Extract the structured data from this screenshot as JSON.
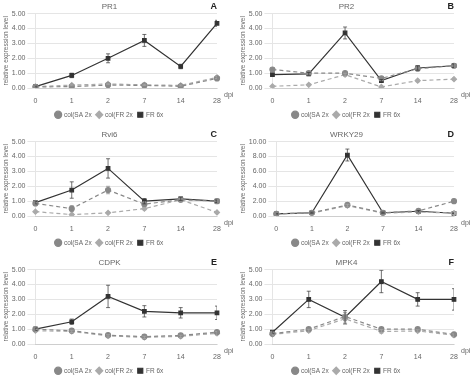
{
  "chart_data": [
    {
      "type": "line",
      "title": "PR1",
      "annotation": "A",
      "xlabel": "dpi",
      "ylabel": "relative expression level",
      "categories": [
        "0",
        "1",
        "2",
        "7",
        "14",
        "28"
      ],
      "ylim": [
        0,
        5.0
      ],
      "yticks": [
        {
          "value": 0,
          "label": "0.00"
        },
        {
          "value": 1,
          "label": "1.00"
        },
        {
          "value": 2,
          "label": "2.00"
        },
        {
          "value": 3,
          "label": "3.00"
        },
        {
          "value": 4,
          "label": "4.00"
        },
        {
          "value": 5,
          "label": "5.00"
        }
      ],
      "grid": "y",
      "legend": "bottom",
      "series": [
        {
          "name": "col(SA 2x",
          "color": "#888888",
          "line_style": "dashed",
          "marker": "circle",
          "values": [
            0.08,
            0.1,
            0.2,
            0.18,
            0.12,
            0.65
          ],
          "errors": [
            0.03,
            0.05,
            0.05,
            0.04,
            0.04,
            0.08
          ]
        },
        {
          "name": "col(FR 2x",
          "color": "#aaaaaa",
          "line_style": "dashed",
          "marker": "diamond",
          "values": [
            0.1,
            0.2,
            0.28,
            0.22,
            0.18,
            0.72
          ],
          "errors": [
            0.03,
            0.04,
            0.05,
            0.04,
            0.04,
            0.08
          ]
        },
        {
          "name": "FR 6x",
          "color": "#333333",
          "line_style": "solid",
          "marker": "square",
          "values": [
            0.1,
            0.85,
            2.0,
            3.2,
            1.45,
            4.35
          ],
          "errors": [
            0.03,
            0.15,
            0.3,
            0.4,
            0.15,
            0.2
          ]
        }
      ]
    },
    {
      "type": "line",
      "title": "PR2",
      "annotation": "B",
      "xlabel": "dpi",
      "ylabel": "relative expression level",
      "categories": [
        "0",
        "1",
        "2",
        "7",
        "14",
        "28"
      ],
      "ylim": [
        0,
        5.0
      ],
      "yticks": [
        {
          "value": 0,
          "label": "0.00"
        },
        {
          "value": 1,
          "label": "1.00"
        },
        {
          "value": 2,
          "label": "2.00"
        },
        {
          "value": 3,
          "label": "3.00"
        },
        {
          "value": 4,
          "label": "4.00"
        },
        {
          "value": 5,
          "label": "5.00"
        }
      ],
      "grid": "y",
      "legend": "bottom",
      "series": [
        {
          "name": "col(SA 2x",
          "color": "#888888",
          "line_style": "dashed",
          "marker": "circle",
          "values": [
            1.25,
            1.0,
            1.0,
            0.65,
            1.3,
            1.5
          ],
          "errors": [
            0.08,
            0.08,
            0.08,
            0.08,
            0.1,
            0.12
          ]
        },
        {
          "name": "col(FR 2x",
          "color": "#aaaaaa",
          "line_style": "dashed",
          "marker": "diamond",
          "values": [
            0.12,
            0.22,
            0.9,
            0.08,
            0.5,
            0.6
          ],
          "errors": [
            0.03,
            0.04,
            0.1,
            0.03,
            0.08,
            0.08
          ]
        },
        {
          "name": "FR 6x",
          "color": "#333333",
          "line_style": "solid",
          "marker": "square",
          "values": [
            0.9,
            0.95,
            3.7,
            0.5,
            1.35,
            1.5
          ],
          "errors": [
            0.08,
            0.1,
            0.4,
            0.08,
            0.15,
            0.12
          ]
        }
      ]
    },
    {
      "type": "line",
      "title": "Rvi6",
      "annotation": "C",
      "xlabel": "dpi",
      "ylabel": "relative expression level",
      "categories": [
        "0",
        "1",
        "2",
        "7",
        "14",
        "28"
      ],
      "ylim": [
        0,
        5.0
      ],
      "yticks": [
        {
          "value": 0,
          "label": "0.00"
        },
        {
          "value": 1,
          "label": "1.00"
        },
        {
          "value": 2,
          "label": "2.00"
        },
        {
          "value": 3,
          "label": "3.00"
        },
        {
          "value": 4,
          "label": "4.00"
        },
        {
          "value": 5,
          "label": "5.00"
        }
      ],
      "grid": "y",
      "legend": "bottom",
      "series": [
        {
          "name": "col(SA 2x",
          "color": "#888888",
          "line_style": "dashed",
          "marker": "circle",
          "values": [
            0.85,
            0.5,
            1.75,
            0.8,
            1.1,
            1.0
          ],
          "errors": [
            0.1,
            0.2,
            0.25,
            0.12,
            0.12,
            0.1
          ]
        },
        {
          "name": "col(FR 2x",
          "color": "#aaaaaa",
          "line_style": "dashed",
          "marker": "diamond",
          "values": [
            0.3,
            0.1,
            0.22,
            0.5,
            1.1,
            0.25
          ],
          "errors": [
            0.04,
            0.04,
            0.04,
            0.08,
            0.12,
            0.04
          ]
        },
        {
          "name": "FR 6x",
          "color": "#333333",
          "line_style": "solid",
          "marker": "square",
          "values": [
            0.9,
            1.75,
            3.2,
            1.0,
            1.15,
            1.0
          ],
          "errors": [
            0.08,
            0.55,
            0.65,
            0.18,
            0.12,
            0.08
          ]
        }
      ]
    },
    {
      "type": "line",
      "title": "WRKY29",
      "annotation": "D",
      "xlabel": "dpi",
      "ylabel": "relative expression level",
      "categories": [
        "0",
        "1",
        "2",
        "7",
        "14",
        "28"
      ],
      "ylim": [
        0,
        10.0
      ],
      "yticks": [
        {
          "value": 0,
          "label": "0.00"
        },
        {
          "value": 2,
          "label": "2.00"
        },
        {
          "value": 4,
          "label": "4.00"
        },
        {
          "value": 6,
          "label": "6.00"
        },
        {
          "value": 8,
          "label": "8.00"
        },
        {
          "value": 10,
          "label": "10.00"
        }
      ],
      "grid": "y",
      "legend": "bottom",
      "series": [
        {
          "name": "col(SA 2x",
          "color": "#888888",
          "line_style": "dashed",
          "marker": "circle",
          "values": [
            0.3,
            0.45,
            1.5,
            0.45,
            0.7,
            2.0
          ],
          "errors": [
            0.05,
            0.08,
            0.18,
            0.08,
            0.1,
            0.28
          ]
        },
        {
          "name": "col(FR 2x",
          "color": "#aaaaaa",
          "line_style": "dashed",
          "marker": "diamond",
          "values": [
            0.3,
            0.4,
            1.4,
            0.4,
            0.55,
            0.4
          ],
          "errors": [
            0.05,
            0.05,
            0.18,
            0.05,
            0.08,
            0.05
          ]
        },
        {
          "name": "FR 6x",
          "color": "#333333",
          "line_style": "solid",
          "marker": "square",
          "values": [
            0.3,
            0.45,
            8.2,
            0.45,
            0.65,
            0.38
          ],
          "errors": [
            0.05,
            0.08,
            0.8,
            0.08,
            0.1,
            0.05
          ]
        }
      ]
    },
    {
      "type": "line",
      "title": "CDPK",
      "annotation": "E",
      "xlabel": "dpi",
      "ylabel": "relative expression level",
      "categories": [
        "0",
        "1",
        "2",
        "7",
        "14",
        "28"
      ],
      "ylim": [
        0,
        5.0
      ],
      "yticks": [
        {
          "value": 0,
          "label": "0.00"
        },
        {
          "value": 1,
          "label": "1.00"
        },
        {
          "value": 2,
          "label": "2.00"
        },
        {
          "value": 3,
          "label": "3.00"
        },
        {
          "value": 4,
          "label": "4.00"
        },
        {
          "value": 5,
          "label": "5.00"
        }
      ],
      "grid": "y",
      "legend": "bottom",
      "series": [
        {
          "name": "col(SA 2x",
          "color": "#888888",
          "line_style": "dashed",
          "marker": "circle",
          "values": [
            1.0,
            0.9,
            0.6,
            0.5,
            0.58,
            0.8
          ],
          "errors": [
            0.08,
            0.08,
            0.08,
            0.08,
            0.08,
            0.12
          ]
        },
        {
          "name": "col(FR 2x",
          "color": "#aaaaaa",
          "line_style": "dashed",
          "marker": "diamond",
          "values": [
            0.9,
            0.85,
            0.55,
            0.45,
            0.52,
            0.72
          ],
          "errors": [
            0.08,
            0.08,
            0.08,
            0.08,
            0.08,
            0.12
          ]
        },
        {
          "name": "FR 6x",
          "color": "#333333",
          "line_style": "solid",
          "marker": "square",
          "values": [
            1.0,
            1.5,
            3.2,
            2.2,
            2.1,
            2.1
          ],
          "errors": [
            0.08,
            0.18,
            0.75,
            0.38,
            0.35,
            0.45
          ]
        }
      ]
    },
    {
      "type": "line",
      "title": "MPK4",
      "annotation": "F",
      "xlabel": "dpi",
      "ylabel": "relative expression level",
      "categories": [
        "0",
        "1",
        "2",
        "7",
        "14",
        "28"
      ],
      "ylim": [
        0,
        5.0
      ],
      "yticks": [
        {
          "value": 0,
          "label": "0.00"
        },
        {
          "value": 1,
          "label": "1.00"
        },
        {
          "value": 2,
          "label": "2.00"
        },
        {
          "value": 3,
          "label": "3.00"
        },
        {
          "value": 4,
          "label": "4.00"
        },
        {
          "value": 5,
          "label": "5.00"
        }
      ],
      "grid": "y",
      "legend": "bottom",
      "series": [
        {
          "name": "col(SA 2x",
          "color": "#888888",
          "line_style": "dashed",
          "marker": "circle",
          "values": [
            0.7,
            1.0,
            1.85,
            1.0,
            1.0,
            0.65
          ],
          "errors": [
            0.08,
            0.1,
            0.28,
            0.12,
            0.08,
            0.08
          ]
        },
        {
          "name": "col(FR 2x",
          "color": "#aaaaaa",
          "line_style": "dashed",
          "marker": "diamond",
          "values": [
            0.65,
            0.9,
            1.7,
            0.85,
            0.88,
            0.6
          ],
          "errors": [
            0.08,
            0.1,
            0.28,
            0.12,
            0.08,
            0.08
          ]
        },
        {
          "name": "FR 6x",
          "color": "#333333",
          "line_style": "solid",
          "marker": "square",
          "values": [
            0.8,
            3.0,
            1.8,
            4.2,
            3.0,
            3.0
          ],
          "errors": [
            0.08,
            0.55,
            0.45,
            0.75,
            0.45,
            0.72
          ]
        }
      ]
    }
  ]
}
